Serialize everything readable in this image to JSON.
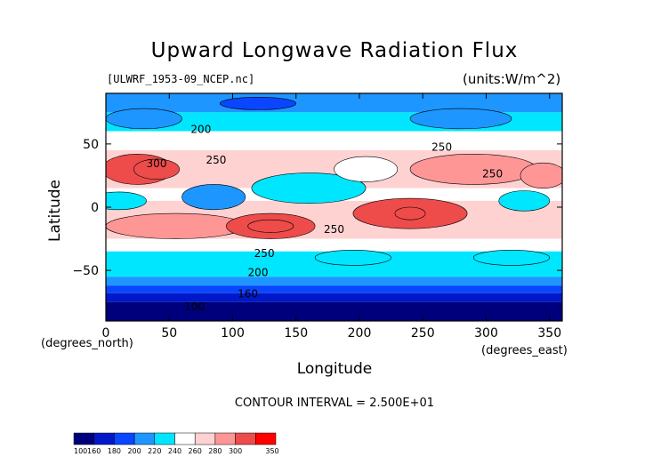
{
  "title": "Upward Longwave Radiation Flux",
  "file_label": "[ULWRF_1953-09_NCEP.nc]",
  "units_label": "(units:W/m^2)",
  "ylabel": "Latitude",
  "ylabel_sub": "(degrees_north)",
  "xlabel": "Longitude",
  "xlabel_sub": "(degrees_east)",
  "contour_note": "CONTOUR INTERVAL = 2.500E+01",
  "colors": {
    "c100": "#00007d",
    "c160": "#0019c8",
    "c180": "#0a46ff",
    "c200": "#1e96ff",
    "c220": "#00e6ff",
    "c240": "#ffffff",
    "c250": "#ffd2d2",
    "c260": "#ff9696",
    "c300": "#ee4b4b",
    "c350": "#ff0000"
  },
  "chart_data": {
    "type": "heatmap",
    "title": "Upward Longwave Radiation Flux",
    "xlabel": "Longitude",
    "ylabel": "Latitude",
    "xlim": [
      0,
      360
    ],
    "ylim": [
      -90,
      90
    ],
    "xticks": [
      0,
      50,
      100,
      150,
      200,
      250,
      300,
      350
    ],
    "yticks": [
      -50,
      0,
      50
    ],
    "ytick_labels": [
      "−50",
      "0",
      "50"
    ],
    "contour_labels": [
      {
        "text": "200",
        "x": 75,
        "y": 61
      },
      {
        "text": "300",
        "x": 40,
        "y": 34
      },
      {
        "text": "250",
        "x": 87,
        "y": 37
      },
      {
        "text": "250",
        "x": 265,
        "y": 47
      },
      {
        "text": "250",
        "x": 305,
        "y": 26
      },
      {
        "text": "250",
        "x": 180,
        "y": -18
      },
      {
        "text": "250",
        "x": 125,
        "y": -37
      },
      {
        "text": "200",
        "x": 120,
        "y": -52
      },
      {
        "text": "160",
        "x": 112,
        "y": -69
      },
      {
        "text": "100",
        "x": 70,
        "y": -79
      }
    ],
    "legend": {
      "boundaries": [
        100,
        160,
        180,
        200,
        220,
        240,
        260,
        280,
        300,
        350
      ],
      "labels": [
        "100",
        "160",
        "180",
        "200",
        "220",
        "240",
        "260",
        "280",
        "300",
        "350"
      ]
    },
    "bands": [
      {
        "lat_from": 90,
        "lat_to": 75,
        "value": 200
      },
      {
        "lat_from": 75,
        "lat_to": 60,
        "value": 220
      },
      {
        "lat_from": 60,
        "lat_to": 45,
        "value": 250
      },
      {
        "lat_from": 45,
        "lat_to": 15,
        "value": 270
      },
      {
        "lat_from": 15,
        "lat_to": 5,
        "value": 240
      },
      {
        "lat_from": 5,
        "lat_to": -25,
        "value": 275
      },
      {
        "lat_from": -25,
        "lat_to": -35,
        "value": 250
      },
      {
        "lat_from": -35,
        "lat_to": -45,
        "value": 235
      },
      {
        "lat_from": -45,
        "lat_to": -55,
        "value": 220
      },
      {
        "lat_from": -55,
        "lat_to": -62,
        "value": 200
      },
      {
        "lat_from": -62,
        "lat_to": -68,
        "value": 180
      },
      {
        "lat_from": -68,
        "lat_to": -75,
        "value": 160
      },
      {
        "lat_from": -75,
        "lat_to": -90,
        "value": 120
      }
    ],
    "blobs": [
      {
        "lon": 25,
        "lat": 30,
        "rlon": 28,
        "rlat": 12,
        "value": 310
      },
      {
        "lon": 40,
        "lat": 30,
        "rlon": 18,
        "rlat": 8,
        "value": 330
      },
      {
        "lon": 10,
        "lat": 5,
        "rlon": 22,
        "rlat": 7,
        "value": 220
      },
      {
        "lon": 85,
        "lat": 8,
        "rlon": 25,
        "rlat": 10,
        "value": 215
      },
      {
        "lon": 160,
        "lat": 15,
        "rlon": 45,
        "rlat": 12,
        "value": 220
      },
      {
        "lon": 55,
        "lat": -15,
        "rlon": 55,
        "rlat": 10,
        "value": 285
      },
      {
        "lon": 130,
        "lat": -15,
        "rlon": 35,
        "rlat": 10,
        "value": 300
      },
      {
        "lon": 130,
        "lat": -15,
        "rlon": 18,
        "rlat": 5,
        "value": 320
      },
      {
        "lon": 240,
        "lat": -5,
        "rlon": 45,
        "rlat": 12,
        "value": 300
      },
      {
        "lon": 240,
        "lat": -5,
        "rlon": 12,
        "rlat": 5,
        "value": 330
      },
      {
        "lon": 290,
        "lat": 30,
        "rlon": 50,
        "rlat": 12,
        "value": 290
      },
      {
        "lon": 345,
        "lat": 25,
        "rlon": 18,
        "rlat": 10,
        "value": 280
      },
      {
        "lon": 205,
        "lat": 30,
        "rlon": 25,
        "rlat": 10,
        "value": 250
      },
      {
        "lon": 330,
        "lat": 5,
        "rlon": 20,
        "rlat": 8,
        "value": 230
      },
      {
        "lon": 30,
        "lat": 70,
        "rlon": 30,
        "rlat": 8,
        "value": 200
      },
      {
        "lon": 280,
        "lat": 70,
        "rlon": 40,
        "rlat": 8,
        "value": 205
      },
      {
        "lon": 120,
        "lat": 82,
        "rlon": 30,
        "rlat": 5,
        "value": 180
      },
      {
        "lon": 195,
        "lat": -40,
        "rlon": 30,
        "rlat": 6,
        "value": 220
      },
      {
        "lon": 320,
        "lat": -40,
        "rlon": 30,
        "rlat": 6,
        "value": 220
      }
    ]
  }
}
